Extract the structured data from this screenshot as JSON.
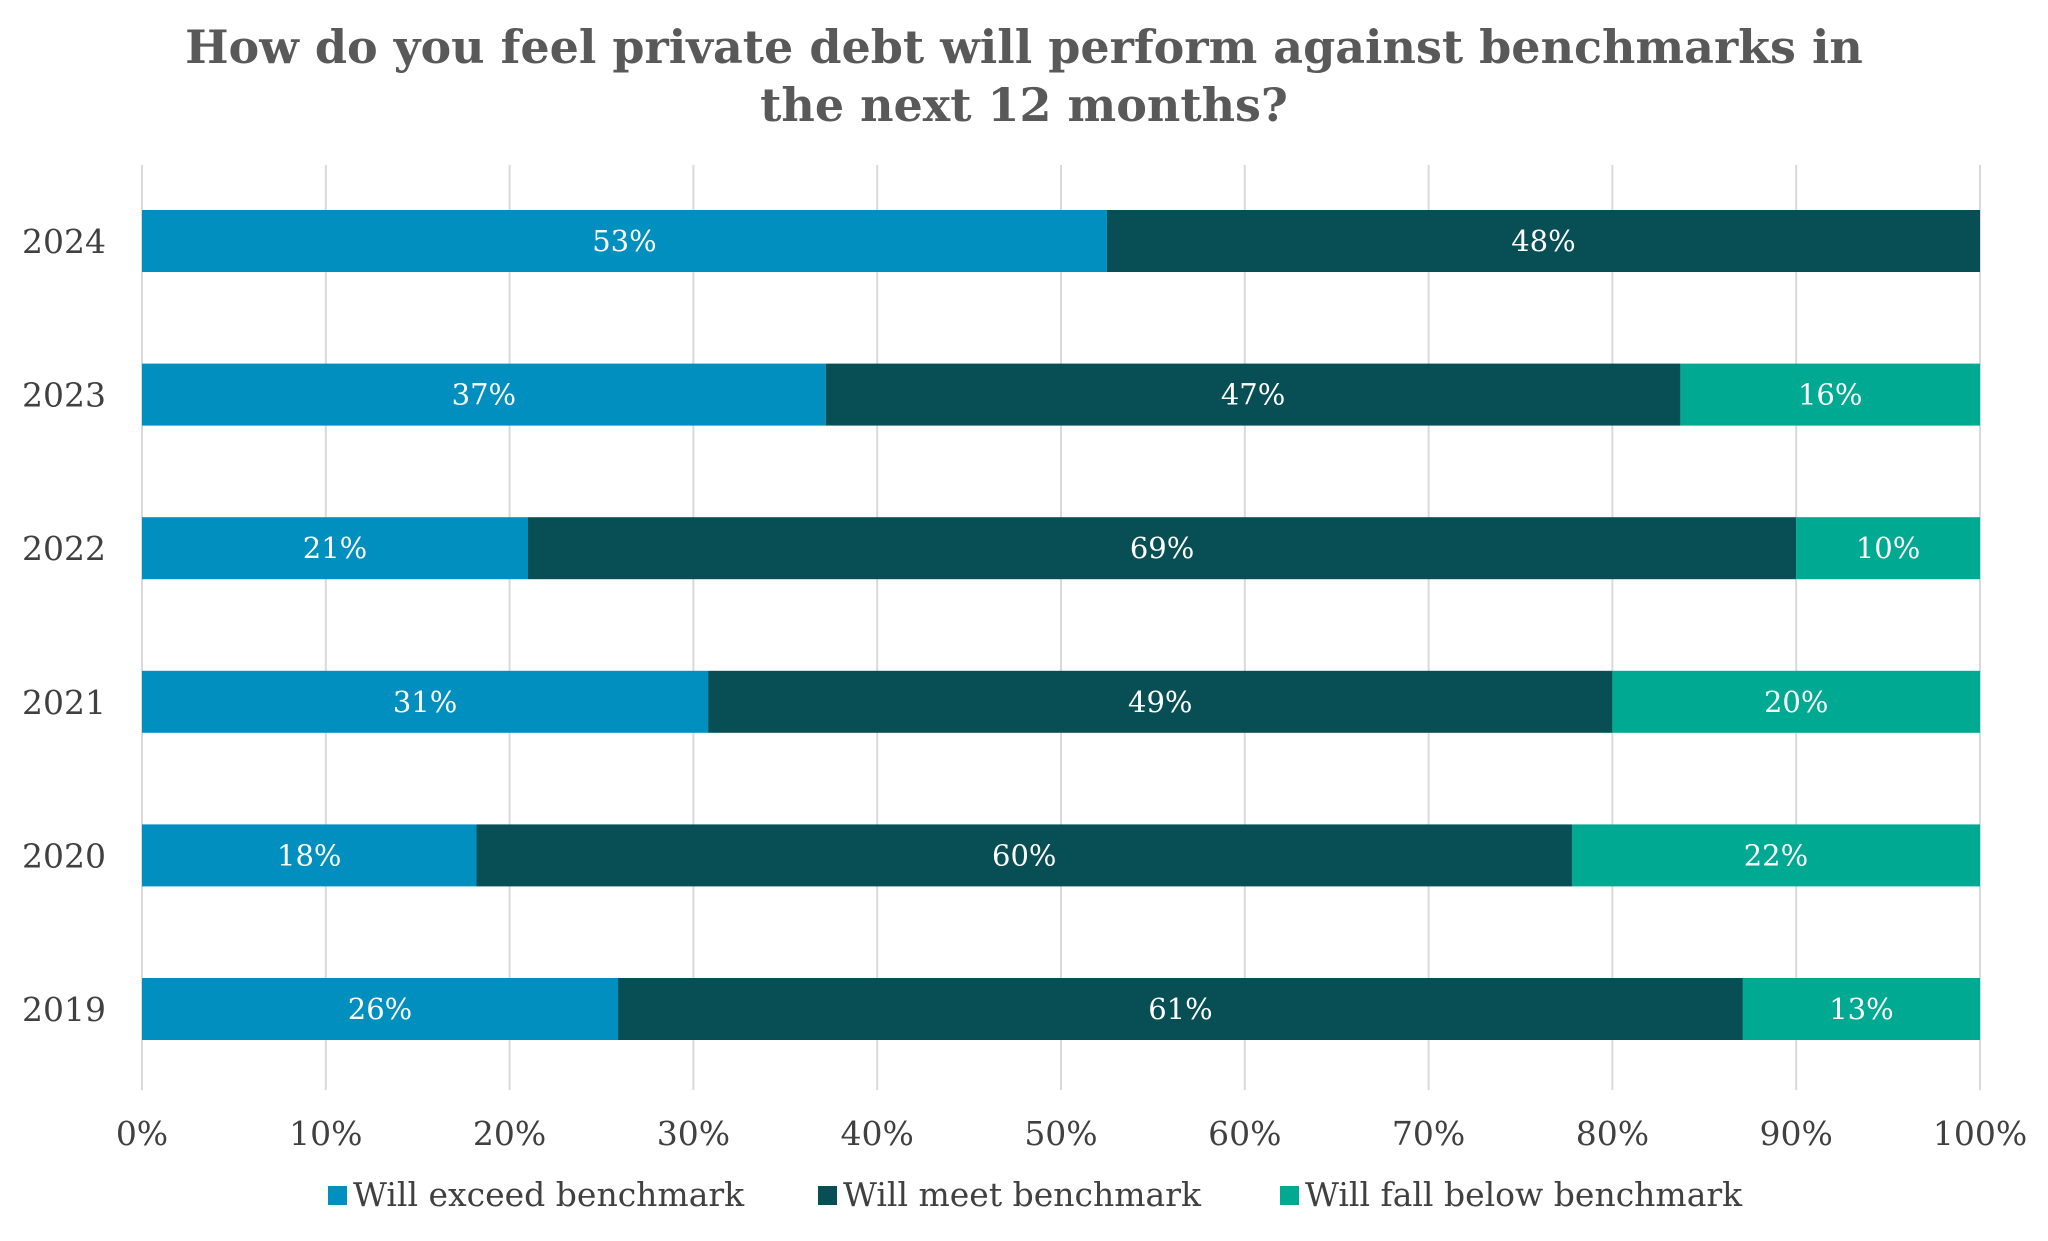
{
  "chart_data": {
    "type": "bar",
    "orientation": "horizontal",
    "stacked": true,
    "title_lines": [
      "How do you feel private debt will perform against benchmarks in",
      "the next 12 months?"
    ],
    "categories": [
      "2024",
      "2023",
      "2022",
      "2021",
      "2020",
      "2019"
    ],
    "series": [
      {
        "name": "Will exceed benchmark",
        "color": "#008FBF",
        "values": [
          52.5,
          37.2,
          21.0,
          30.8,
          18.2,
          25.9
        ],
        "labels": [
          "53%",
          "37%",
          "21%",
          "31%",
          "18%",
          "26%"
        ]
      },
      {
        "name": "Will meet benchmark",
        "color": "#084F55",
        "values": [
          47.5,
          46.5,
          69.0,
          49.2,
          59.6,
          61.2
        ],
        "labels": [
          "48%",
          "47%",
          "69%",
          "49%",
          "60%",
          "61%"
        ]
      },
      {
        "name": "Will fall below benchmark",
        "color": "#00A991",
        "values": [
          0,
          16.3,
          10.0,
          20.0,
          22.2,
          12.9
        ],
        "labels": [
          "",
          "16%",
          "10%",
          "20%",
          "22%",
          "13%"
        ]
      }
    ],
    "x_ticks": [
      "0%",
      "10%",
      "20%",
      "30%",
      "40%",
      "50%",
      "60%",
      "70%",
      "80%",
      "90%",
      "100%"
    ],
    "xlim": [
      0,
      100
    ],
    "grid": true,
    "legend": "bottom"
  }
}
